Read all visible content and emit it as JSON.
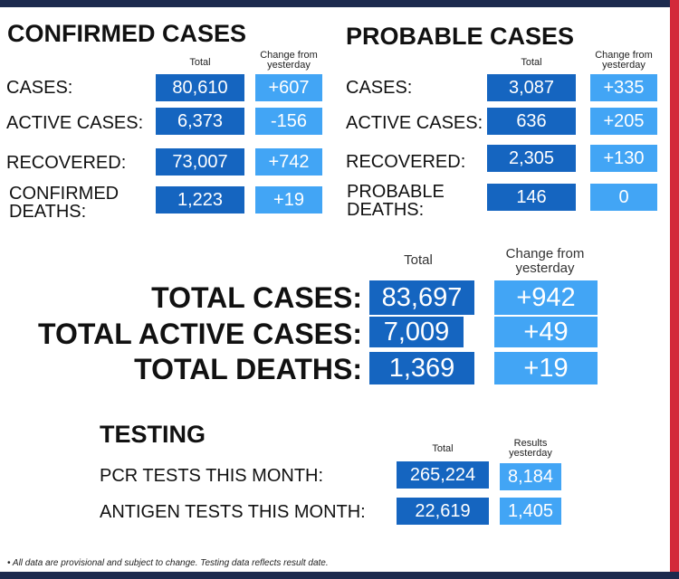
{
  "confirmed": {
    "title": "CONFIRMED CASES",
    "total_header": "Total",
    "change_header_line1": "Change from",
    "change_header_line2": "yesterday",
    "rows": [
      {
        "label": "CASES:",
        "total": "80,610",
        "change": "+607"
      },
      {
        "label": "ACTIVE CASES:",
        "total": "6,373",
        "change": "-156"
      },
      {
        "label": "RECOVERED:",
        "total": "73,007",
        "change": "+742"
      },
      {
        "label_line1": "CONFIRMED",
        "label_line2": "DEATHS:",
        "total": "1,223",
        "change": "+19"
      }
    ]
  },
  "probable": {
    "title": "PROBABLE CASES",
    "total_header": "Total",
    "change_header_line1": "Change from",
    "change_header_line2": "yesterday",
    "rows": [
      {
        "label": "CASES:",
        "total": "3,087",
        "change": "+335"
      },
      {
        "label": "ACTIVE CASES:",
        "total": "636",
        "change": "+205"
      },
      {
        "label": "RECOVERED:",
        "total": "2,305",
        "change": "+130"
      },
      {
        "label_line1": "PROBABLE",
        "label_line2": "DEATHS:",
        "total": "146",
        "change": "0"
      }
    ]
  },
  "totals": {
    "total_header": "Total",
    "change_header_line1": "Change from",
    "change_header_line2": "yesterday",
    "rows": [
      {
        "label": "TOTAL CASES:",
        "total": "83,697",
        "change": "+942"
      },
      {
        "label": "TOTAL ACTIVE CASES:",
        "total": "7,009",
        "change": "+49"
      },
      {
        "label": "TOTAL DEATHS:",
        "total": "1,369",
        "change": "+19"
      }
    ]
  },
  "testing": {
    "title": "TESTING",
    "total_header": "Total",
    "results_header_line1": "Results",
    "results_header_line2": "yesterday",
    "rows": [
      {
        "label": "PCR TESTS THIS MONTH:",
        "total": "265,224",
        "results": "8,184"
      },
      {
        "label": "ANTIGEN TESTS THIS MONTH:",
        "total": "22,619",
        "results": "1,405"
      }
    ]
  },
  "footer": "• All data are provisional and subject to change. Testing data reflects result date.",
  "colors": {
    "dark_box": "#1565c0",
    "light_box": "#42a5f5",
    "top_bar": "#1c2a4e",
    "accent_red": "#d32a3a"
  }
}
